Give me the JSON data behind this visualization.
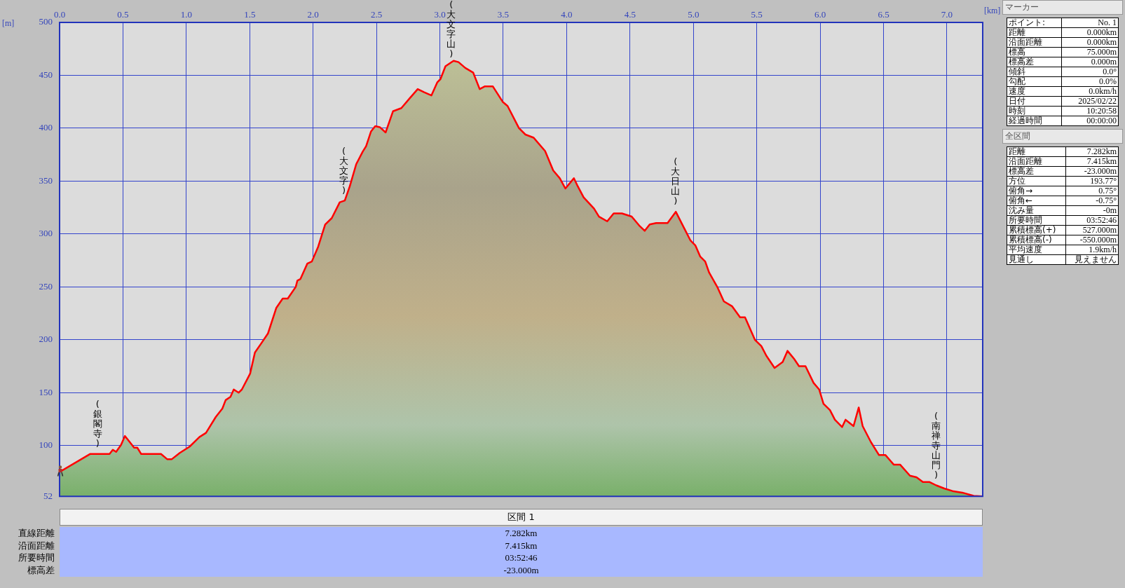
{
  "chart_data": [
    {
      "type": "area",
      "xlabel": "[km]",
      "ylabel": "[m]",
      "x": [
        0,
        0.24,
        0.394,
        0.42,
        0.446,
        0.485,
        0.515,
        0.536,
        0.588,
        0.613,
        0.644,
        0.8,
        0.85,
        0.884,
        0.948,
        1.026,
        1.103,
        1.155,
        1.232,
        1.284,
        1.31,
        1.348,
        1.374,
        1.412,
        1.438,
        1.503,
        1.541,
        1.593,
        1.644,
        1.709,
        1.76,
        1.8,
        1.863,
        1.876,
        1.9,
        1.954,
        1.99,
        2.04,
        2.095,
        2.147,
        2.21,
        2.25,
        2.289,
        2.34,
        2.392,
        2.418,
        2.457,
        2.49,
        2.526,
        2.572,
        2.63,
        2.696,
        2.76,
        2.825,
        2.876,
        2.933,
        2.98,
        3.005,
        3.044,
        3.108,
        3.147,
        3.2,
        3.263,
        3.314,
        3.353,
        3.418,
        3.495,
        3.534,
        3.624,
        3.675,
        3.74,
        3.83,
        3.894,
        3.946,
        3.99,
        4.057,
        4.088,
        4.134,
        4.216,
        4.255,
        4.32,
        4.371,
        4.436,
        4.513,
        4.577,
        4.616,
        4.655,
        4.706,
        4.796,
        4.861,
        4.925,
        4.977,
        5.015,
        5.054,
        5.093,
        5.124,
        5.188,
        5.24,
        5.304,
        5.368,
        5.407,
        5.485,
        5.536,
        5.575,
        5.64,
        5.704,
        5.742,
        5.794,
        5.833,
        5.884,
        5.948,
        5.992,
        6.026,
        6.077,
        6.116,
        6.173,
        6.2,
        6.263,
        6.304,
        6.335,
        6.4,
        6.464,
        6.515,
        6.58,
        6.63,
        6.708,
        6.76,
        6.81,
        6.863,
        6.915,
        6.979,
        7.044,
        7.121,
        7.211,
        7.282
      ],
      "series": [
        {
          "color": "#ff0000",
          "values": [
            75,
            92,
            92,
            96,
            94,
            100.6,
            109,
            106,
            98,
            98,
            92,
            92,
            87,
            87,
            93,
            99,
            108,
            112,
            127,
            135,
            143,
            146,
            153,
            150,
            153,
            168,
            188,
            197,
            206,
            230,
            239,
            239,
            250,
            256,
            257.5,
            272,
            274,
            288,
            309,
            315,
            330,
            331.6,
            345,
            366,
            378,
            383,
            397,
            402,
            401,
            396,
            416,
            419,
            428,
            437,
            434,
            431,
            443.5,
            446.5,
            458.6,
            463.7,
            462.5,
            457,
            452.5,
            437,
            439.5,
            439.5,
            425,
            421,
            400,
            394,
            391,
            378.4,
            360,
            352.7,
            343,
            352.7,
            345,
            334.6,
            324,
            316.4,
            312,
            319.5,
            319.5,
            316.5,
            307.4,
            303,
            309,
            310.4,
            310.4,
            321,
            306,
            293.8,
            289.3,
            278.6,
            274,
            263.5,
            250,
            236.3,
            231.8,
            221.2,
            221.2,
            200,
            194,
            185,
            173.4,
            179,
            189.5,
            182,
            175,
            175,
            159.2,
            153,
            139.5,
            133.5,
            124.4,
            117.5,
            124.4,
            118.4,
            136,
            118.4,
            103.3,
            91,
            91,
            82,
            82,
            71.5,
            70,
            65.5,
            65.5,
            62.4,
            59.4,
            57,
            55.5,
            52.5,
            52
          ]
        }
      ],
      "xlim": [
        0,
        7.282
      ],
      "xticks": [
        {
          "value": 0,
          "label": "0.0"
        },
        0.5,
        {
          "value": 1,
          "label": "1.0"
        },
        1.5,
        {
          "value": 2,
          "label": "2.0"
        },
        2.5,
        {
          "value": 3,
          "label": "3.0"
        },
        3.5,
        {
          "value": 4,
          "label": "4.0"
        },
        4.5,
        {
          "value": 5,
          "label": "5.0"
        },
        5.5,
        {
          "value": 6,
          "label": "6.0"
        },
        6.5,
        {
          "value": 7,
          "label": "7.0"
        }
      ],
      "ylim": [
        52,
        500
      ],
      "yticks": [
        52,
        100,
        150,
        200,
        250,
        300,
        350,
        400,
        450,
        500
      ],
      "grid": true,
      "legend": false,
      "marker": "none",
      "line_style": "solid",
      "annotations": [
        {
          "text": "(銀閣寺)",
          "x": 0.3,
          "y": 92
        },
        {
          "text": "(大文字)",
          "x": 2.243,
          "y": 331
        },
        {
          "text": "(大文字山)",
          "x": 3.09,
          "y": 462
        },
        {
          "text": "(大日山)",
          "x": 4.859,
          "y": 321
        },
        {
          "text": "(南禅寺山門)",
          "x": 6.915,
          "y": 62.4
        }
      ]
    },
    {
      "type": "other",
      "categories": [
        "区間 1"
      ],
      "y_categories": [
        "直線距離",
        "沿面距離",
        "所要時間",
        "標高差"
      ],
      "cell_labels": [
        [
          "7.282km"
        ],
        [
          "7.415km"
        ],
        [
          "03:52:46"
        ],
        [
          "-23.000m"
        ]
      ]
    },
    {
      "type": "other",
      "title": "マーカー",
      "y_categories": [
        "ポイント:",
        "距離",
        "沿面距離",
        "標高",
        "標高差",
        "傾斜",
        "勾配",
        "速度",
        "日付",
        "時刻",
        "経過時間"
      ],
      "cell_labels": [
        [
          "No. 1"
        ],
        [
          "0.000km"
        ],
        [
          "0.000km"
        ],
        [
          "75.000m"
        ],
        [
          "0.000m"
        ],
        [
          "0.0°"
        ],
        [
          "0.0%"
        ],
        [
          "0.0km/h"
        ],
        [
          "2025/02/22"
        ],
        [
          "10:20:58"
        ],
        [
          "00:00:00"
        ]
      ]
    },
    {
      "type": "other",
      "title": "全区間",
      "y_categories": [
        "距離",
        "沿面距離",
        "標高差",
        "方位",
        "俯角→",
        "俯角←",
        "沈み量",
        "所要時間",
        "累積標高(+)",
        "累積標高(-)",
        "平均速度",
        "見通し"
      ],
      "cell_labels": [
        [
          "7.282km"
        ],
        [
          "7.415km"
        ],
        [
          "-23.000m"
        ],
        [
          "193.77°"
        ],
        [
          "0.75°"
        ],
        [
          "-0.75°"
        ],
        [
          "-0m"
        ],
        [
          "03:52:46"
        ],
        [
          "527.000m"
        ],
        [
          "-550.000m"
        ],
        [
          "1.9km/h"
        ],
        [
          "見えません"
        ]
      ]
    }
  ]
}
